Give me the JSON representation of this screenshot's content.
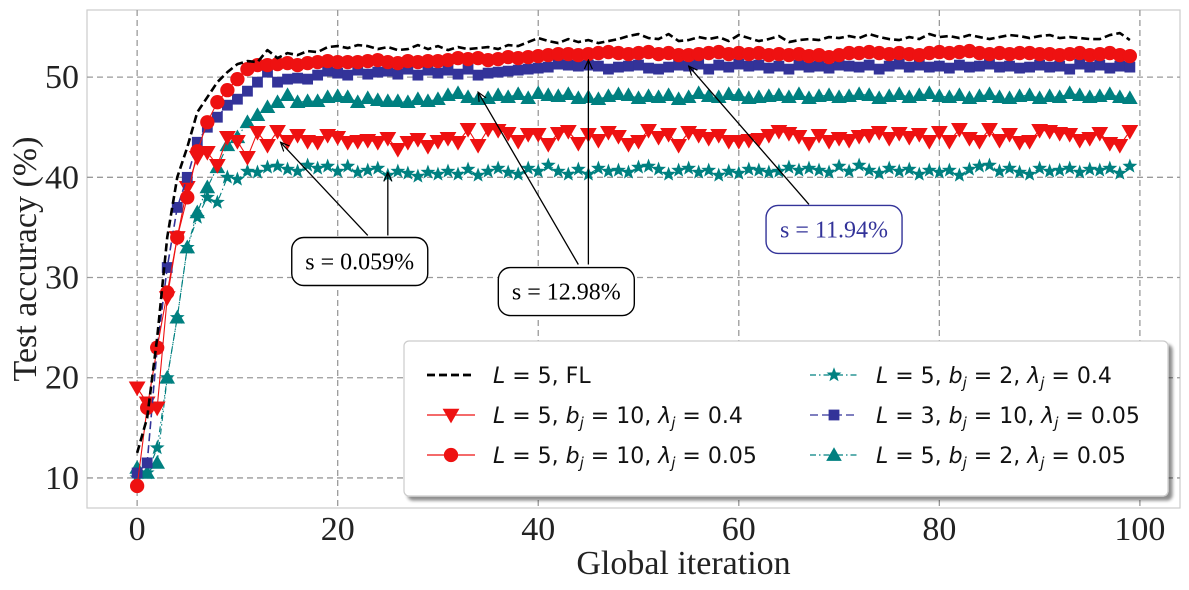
{
  "chart_data": {
    "type": "line",
    "xlabel": "Global iteration",
    "ylabel": "Test accuracy (%)",
    "xlim": [
      -5,
      104
    ],
    "ylim": [
      7,
      56.7
    ],
    "xticks": [
      0,
      20,
      40,
      60,
      80,
      100
    ],
    "yticks": [
      10,
      20,
      30,
      40,
      50
    ],
    "grid": true,
    "legend_position": "lower-right",
    "series": [
      {
        "name": "L = 5, FL",
        "legend_parts": [
          [
            "L",
            "i"
          ],
          [
            " = 5, FL",
            "n"
          ]
        ],
        "color": "#000000",
        "linestyle": "dashed",
        "marker": "none",
        "values": [
          12.5,
          16,
          24,
          34,
          40,
          43,
          46.5,
          48,
          49.5,
          50.5,
          51.3,
          51.6,
          51.5,
          52.7,
          51.9,
          52.4,
          52.2,
          52.6,
          52.5,
          53,
          53.1,
          52.9,
          53.2,
          53.1,
          52.8,
          53,
          52.7,
          52.8,
          53.2,
          52.8,
          53.1,
          52.7,
          53,
          52.8,
          52.9,
          53,
          52.8,
          53.2,
          53.1,
          53.5,
          53.9,
          53.6,
          53.4,
          53.8,
          53.5,
          53.7,
          53.4,
          53.6,
          53.8,
          54.1,
          54.3,
          53.9,
          53.8,
          54.3,
          53.6,
          53.7,
          54,
          53.8,
          54,
          53.6,
          54.2,
          53.9,
          53.6,
          53.8,
          54.1,
          53.5,
          53.7,
          53.8,
          53.7,
          54,
          53.9,
          54.1,
          53.9,
          54.3,
          54,
          53.8,
          53.7,
          54,
          53.8,
          54.3,
          54,
          54.1,
          53.9,
          54.2,
          54,
          53.8,
          54,
          54.2,
          54.1,
          53.9,
          54.1,
          54.2,
          53.9,
          54,
          53.9,
          53.8,
          53.8,
          54.2,
          54.4,
          53.7
        ]
      },
      {
        "name": "L = 5, b_j = 10, λ_j = 0.4",
        "legend_parts": [
          [
            "L",
            "i"
          ],
          [
            " = 5, ",
            "n"
          ],
          [
            "b",
            "i"
          ],
          [
            "j",
            "sub"
          ],
          [
            " = 10, ",
            "n"
          ],
          [
            "λ",
            "i"
          ],
          [
            "j",
            "sub"
          ],
          [
            " = 0.4",
            "n"
          ]
        ],
        "color": "#ee1111",
        "linestyle": "solid",
        "marker": "triangle-down",
        "values": [
          19,
          17.5,
          17,
          28,
          34,
          39,
          42,
          42.5,
          41.2,
          44,
          43.6,
          42,
          44.5,
          43.2,
          44.6,
          43.6,
          44.2,
          43.6,
          43.5,
          44.2,
          44,
          43.5,
          43.6,
          43.7,
          43.5,
          43.9,
          42.8,
          43.5,
          43.8,
          43.1,
          43.6,
          43.9,
          43.5,
          44.8,
          43.2,
          44.8,
          44.7,
          44.4,
          43.6,
          44.3,
          44.3,
          43.3,
          44.4,
          44.6,
          43.4,
          44.3,
          43.7,
          44.5,
          44.1,
          43.3,
          43.6,
          44.7,
          44,
          44.3,
          43.2,
          44.5,
          44.2,
          43.9,
          44.2,
          43.6,
          43.6,
          43.7,
          43.8,
          44.2,
          44.6,
          44.4,
          44.1,
          43.4,
          44.2,
          43.6,
          43.9,
          43.7,
          44.1,
          44.2,
          44.5,
          43.9,
          44.4,
          44,
          44.3,
          43.6,
          44.5,
          43.6,
          44.8,
          43.9,
          43.6,
          44.8,
          43.7,
          44.3,
          43.5,
          43.6,
          44.7,
          44.6,
          44.4,
          44.3,
          43.7,
          43.9,
          44.4,
          43.4,
          43.2,
          44.6
        ]
      },
      {
        "name": "L = 5, b_j = 10, λ_j = 0.05",
        "legend_parts": [
          [
            "L",
            "i"
          ],
          [
            " = 5, ",
            "n"
          ],
          [
            "b",
            "i"
          ],
          [
            "j",
            "sub"
          ],
          [
            " = 10, ",
            "n"
          ],
          [
            "λ",
            "i"
          ],
          [
            "j",
            "sub"
          ],
          [
            " = 0.05",
            "n"
          ]
        ],
        "color": "#ee1111",
        "linestyle": "solid",
        "marker": "circle",
        "values": [
          9.2,
          17,
          23,
          28.5,
          34,
          38,
          42.6,
          45.5,
          47.5,
          48.7,
          49.8,
          50.8,
          51.2,
          51.2,
          51.3,
          51.4,
          51.2,
          51.4,
          51.5,
          51.6,
          51.5,
          51.5,
          51.5,
          51.6,
          51.7,
          51.5,
          51.4,
          51.6,
          51.5,
          51.6,
          51.6,
          51.7,
          51.9,
          51.8,
          51.9,
          51.7,
          51.8,
          52,
          51.9,
          52,
          52.1,
          52.2,
          52.3,
          52.3,
          52.2,
          52.3,
          52.4,
          52.5,
          52.4,
          52.3,
          52.4,
          52.5,
          52.3,
          52.4,
          52.2,
          52.2,
          52.3,
          52.4,
          52.5,
          52.3,
          52.4,
          52.3,
          52.4,
          52.2,
          52.3,
          52.2,
          52.3,
          52.1,
          52.2,
          52,
          52.2,
          52.4,
          52.4,
          52.5,
          52.4,
          52.3,
          52.4,
          52.3,
          52.2,
          52.4,
          52.5,
          52.4,
          52.5,
          52.6,
          52.4,
          52.3,
          52.4,
          52.3,
          52.4,
          52.4,
          52.3,
          52.3,
          52.2,
          52.3,
          52.4,
          52.2,
          52.3,
          52.4,
          52.2,
          52.1
        ]
      },
      {
        "name": "L = 5, b_j = 2, λ_j = 0.4",
        "legend_parts": [
          [
            "L",
            "i"
          ],
          [
            " = 5, ",
            "n"
          ],
          [
            "b",
            "i"
          ],
          [
            "j",
            "sub"
          ],
          [
            " = 2, ",
            "n"
          ],
          [
            "λ",
            "i"
          ],
          [
            "j",
            "sub"
          ],
          [
            " = 0.4",
            "n"
          ]
        ],
        "color": "#008080",
        "linestyle": "dashdot",
        "marker": "star",
        "values": [
          10,
          10.5,
          13,
          20,
          26,
          33,
          36,
          38,
          37.5,
          40,
          39.8,
          40.6,
          40.5,
          41,
          41.1,
          40.8,
          40.6,
          41.2,
          40.9,
          41.1,
          40.6,
          41.1,
          40.5,
          40.7,
          40.9,
          40.2,
          40.6,
          40.4,
          40.1,
          40.5,
          40.3,
          40.6,
          40.3,
          40.8,
          40.2,
          40.6,
          40.9,
          40.5,
          40.3,
          40.9,
          40.6,
          41.2,
          40.6,
          40.3,
          40.8,
          40.3,
          40.9,
          40.6,
          40.7,
          40.5,
          41,
          41.1,
          40.8,
          40.3,
          40.7,
          40.9,
          40.5,
          40.7,
          40.2,
          40.6,
          40.4,
          40.8,
          40.7,
          40.5,
          40.6,
          41,
          40.7,
          40.9,
          40.7,
          40.5,
          41.1,
          40.6,
          41.2,
          40.7,
          40.4,
          40.9,
          40.6,
          40.8,
          40.3,
          40.7,
          40.5,
          40.7,
          40.2,
          40.8,
          41.1,
          41.2,
          40.6,
          40.9,
          40.5,
          40.3,
          40.9,
          40.6,
          40.7,
          40.9,
          40.5,
          40.8,
          40.7,
          40.9,
          40.4,
          41.1
        ]
      },
      {
        "name": "L = 3, b_j = 10, λ_j = 0.05",
        "legend_parts": [
          [
            "L",
            "i"
          ],
          [
            " = 3, ",
            "n"
          ],
          [
            "b",
            "i"
          ],
          [
            "j",
            "sub"
          ],
          [
            " = 10, ",
            "n"
          ],
          [
            "λ",
            "i"
          ],
          [
            "j",
            "sub"
          ],
          [
            " = 0.05",
            "n"
          ]
        ],
        "color": "#333399",
        "linestyle": "dashed",
        "marker": "square",
        "values": [
          10.5,
          11.5,
          23,
          31,
          37,
          40,
          43.5,
          45,
          46,
          47.2,
          47.8,
          48.6,
          49.5,
          50.5,
          49.5,
          49.8,
          49.9,
          49.8,
          50.2,
          50.6,
          50.4,
          50.2,
          50.7,
          50.3,
          50.5,
          50.6,
          50.3,
          50.8,
          50.2,
          50.7,
          50.4,
          50.7,
          50.3,
          50.8,
          50.2,
          50.4,
          50.5,
          50.6,
          50.7,
          50.8,
          50.9,
          51,
          51.3,
          51.2,
          51.1,
          51.2,
          51.1,
          50.8,
          51,
          51.1,
          51.2,
          50.9,
          50.8,
          51,
          51.2,
          51.1,
          51.3,
          50.8,
          51.2,
          51,
          51.3,
          51.1,
          51.2,
          50.9,
          51.1,
          50.8,
          51.2,
          51,
          51.1,
          50.9,
          51.2,
          51.1,
          51,
          51.2,
          50.8,
          51.1,
          51.3,
          51,
          51.2,
          51,
          51.1,
          50.9,
          51.2,
          51,
          51.1,
          51.3,
          51,
          51.1,
          50.9,
          51,
          51.2,
          51,
          51.1,
          50.8,
          51.3,
          51,
          51.2,
          50.9,
          51.1,
          51
        ]
      },
      {
        "name": "L = 5, b_j = 2, λ_j = 0.05",
        "legend_parts": [
          [
            "L",
            "i"
          ],
          [
            " = 5, ",
            "n"
          ],
          [
            "b",
            "i"
          ],
          [
            "j",
            "sub"
          ],
          [
            " = 2, ",
            "n"
          ],
          [
            "λ",
            "i"
          ],
          [
            "j",
            "sub"
          ],
          [
            " = 0.05",
            "n"
          ]
        ],
        "color": "#008080",
        "linestyle": "dashdot",
        "marker": "triangle-up",
        "values": [
          11,
          10.5,
          11.5,
          20,
          26,
          33,
          36.5,
          39,
          41,
          43.2,
          44,
          45.5,
          46.2,
          47,
          47.5,
          48.2,
          47.5,
          47.6,
          47.6,
          48,
          48.1,
          48,
          47.5,
          47.9,
          47.7,
          47.6,
          47.6,
          47.5,
          47.8,
          47.6,
          47.8,
          48.2,
          48.4,
          48,
          47.8,
          47.9,
          48.2,
          48,
          48.3,
          47.9,
          48.4,
          48.2,
          48.1,
          48.3,
          47.9,
          48,
          47.8,
          48.1,
          48.3,
          48.2,
          47.9,
          48.1,
          48,
          48.2,
          47.8,
          48,
          48.4,
          48.1,
          48,
          48.3,
          48.2,
          47.9,
          48,
          48.1,
          48.2,
          48,
          48.3,
          47.9,
          48.1,
          48.2,
          48,
          48.1,
          48.3,
          48.2,
          47.9,
          48.1,
          48.3,
          48,
          48.2,
          48.4,
          48.1,
          48,
          48.2,
          47.9,
          48.1,
          48.3,
          48,
          47.9,
          48.1,
          48.2,
          47.9,
          48.1,
          48,
          48.4,
          48.2,
          48,
          48.1,
          48.3,
          48,
          47.9
        ]
      }
    ],
    "legend_order": [
      0,
      1,
      2,
      3,
      4,
      5
    ],
    "annotations": [
      {
        "text": "s = 0.059%",
        "color": "#000000",
        "box_x": 22.2,
        "box_y": 31.6,
        "arrows": [
          {
            "from": [
              23,
              34.2
            ],
            "to": [
              14.3,
              43.5
            ]
          },
          {
            "from": [
              25,
              34.2
            ],
            "to": [
              25,
              40.5
            ]
          }
        ]
      },
      {
        "text": "s = 12.98%",
        "color": "#000000",
        "box_x": 42.8,
        "box_y": 28.6,
        "arrows": [
          {
            "from": [
              44,
              31.3
            ],
            "to": [
              34,
              48.5
            ]
          },
          {
            "from": [
              45,
              31.3
            ],
            "to": [
              45,
              51.7
            ]
          }
        ]
      },
      {
        "text": "s = 11.94%",
        "color": "#333399",
        "box_x": 69.5,
        "box_y": 34.8,
        "arrows": [
          {
            "from": [
              67,
              37.3
            ],
            "to": [
              55,
              51.1
            ]
          }
        ]
      }
    ]
  }
}
